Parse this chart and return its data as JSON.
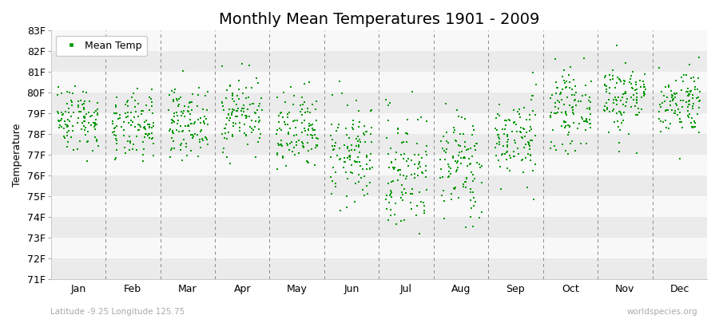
{
  "title": "Monthly Mean Temperatures 1901 - 2009",
  "ylabel": "Temperature",
  "xlabel_months": [
    "Jan",
    "Feb",
    "Mar",
    "Apr",
    "May",
    "Jun",
    "Jul",
    "Aug",
    "Sep",
    "Oct",
    "Nov",
    "Dec"
  ],
  "ylim": [
    71,
    83
  ],
  "yticks": [
    71,
    72,
    73,
    74,
    75,
    76,
    77,
    78,
    79,
    80,
    81,
    82,
    83
  ],
  "ytick_labels": [
    "71F",
    "72F",
    "73F",
    "74F",
    "75F",
    "76F",
    "77F",
    "78F",
    "79F",
    "80F",
    "81F",
    "82F",
    "83F"
  ],
  "point_color": "#009900",
  "background_color": "#ffffff",
  "band_color_odd": "#ebebeb",
  "band_color_even": "#f8f8f8",
  "dashed_line_color": "#888888",
  "legend_label": "Mean Temp",
  "subtitle_left": "Latitude -9.25 Longitude 125.75",
  "subtitle_right": "worldspecies.org",
  "monthly_means": [
    78.8,
    78.3,
    78.6,
    79.0,
    78.0,
    77.0,
    76.2,
    76.5,
    77.8,
    79.2,
    79.8,
    79.6
  ],
  "monthly_stds": [
    0.8,
    0.8,
    0.8,
    0.9,
    1.0,
    1.2,
    1.5,
    1.3,
    1.0,
    0.9,
    0.9,
    0.8
  ],
  "n_years": 109,
  "seed": 42,
  "point_size": 3,
  "title_fontsize": 14,
  "axis_fontsize": 9,
  "legend_fontsize": 9,
  "subtitle_fontsize": 7.5
}
